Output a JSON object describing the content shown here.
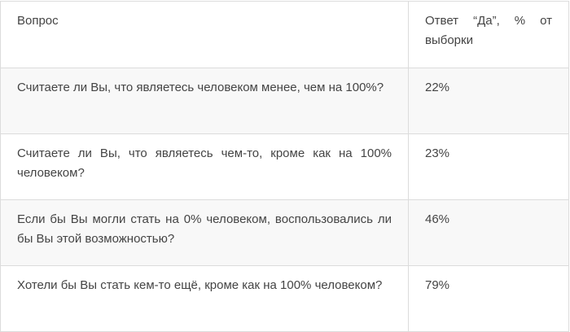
{
  "table": {
    "headers": [
      "Вопрос",
      "Ответ “Да”, % от выборки"
    ],
    "rows": [
      {
        "question": "Считаете ли Вы, что являетесь человеком менее, чем на 100%?",
        "answer": "22%"
      },
      {
        "question": "Считаете ли Вы, что являетесь чем-то, кроме как на 100% человеком?",
        "answer": "23%"
      },
      {
        "question": "Если бы Вы могли стать на 0% человеком, воспользовались ли бы Вы этой возможностью?",
        "answer": "46%"
      },
      {
        "question": "Хотели бы Вы стать кем-то ещё, кроме как на 100% человеком?",
        "answer": "79%"
      }
    ]
  },
  "colors": {
    "border": "#dcdcdc",
    "alt_row": "#f8f8f8",
    "text": "#444444"
  }
}
